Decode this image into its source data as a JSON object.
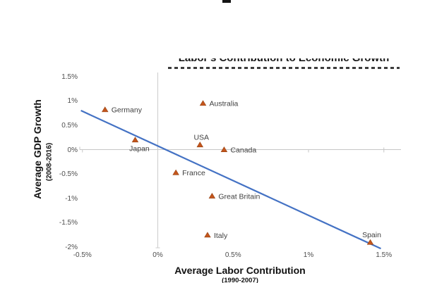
{
  "artifacts": {
    "top_cropped_text_fragment": true,
    "clipped_second_title_row": true
  },
  "chart_data": {
    "type": "scatter",
    "title": "Labor's Contribution to Economic Growth",
    "title_note": "title is vertically clipped in the screenshot (only bottom half of glyphs visible)",
    "xlabel": "Average Labor Contribution",
    "xlabel_sub": "(1990-2007)",
    "ylabel": "Average GDP Growth",
    "ylabel_sub": "(2008-2016)",
    "xlim": [
      -0.5,
      1.5
    ],
    "ylim": [
      -2.0,
      1.5
    ],
    "grid": "only zero axis lines shown, light gray",
    "legend": "none",
    "x_ticks": [
      {
        "v": -0.5,
        "label": "-0.5%"
      },
      {
        "v": 0,
        "label": "0%"
      },
      {
        "v": 0.5,
        "label": "0.5%"
      },
      {
        "v": 1,
        "label": "1%"
      },
      {
        "v": 1.5,
        "label": "1.5%"
      }
    ],
    "y_ticks": [
      {
        "v": 1.5,
        "label": "1.5%"
      },
      {
        "v": 1,
        "label": "1%"
      },
      {
        "v": 0.5,
        "label": "0.5%"
      },
      {
        "v": 0,
        "label": "0%"
      },
      {
        "v": -0.5,
        "label": "-0.5%"
      },
      {
        "v": -1,
        "label": "-1%"
      },
      {
        "v": -1.5,
        "label": "-1.5%"
      },
      {
        "v": -2,
        "label": "-2%"
      }
    ],
    "points": [
      {
        "label": "Germany",
        "x": -0.35,
        "y": 0.82,
        "label_pos": "right"
      },
      {
        "label": "Japan",
        "x": -0.15,
        "y": 0.2,
        "label_pos": "below"
      },
      {
        "label": "Australia",
        "x": 0.3,
        "y": 0.95,
        "label_pos": "right"
      },
      {
        "label": "USA",
        "x": 0.28,
        "y": 0.1,
        "label_pos": "above"
      },
      {
        "label": "Canada",
        "x": 0.44,
        "y": 0.0,
        "label_pos": "right"
      },
      {
        "label": "France",
        "x": 0.12,
        "y": -0.47,
        "label_pos": "right"
      },
      {
        "label": "Great Britain",
        "x": 0.36,
        "y": -0.95,
        "label_pos": "right"
      },
      {
        "label": "Italy",
        "x": 0.33,
        "y": -1.75,
        "label_pos": "right"
      },
      {
        "label": "Spain",
        "x": 1.41,
        "y": -1.9,
        "label_pos": "above"
      }
    ],
    "trendline": {
      "x1": -0.51,
      "y1": 0.8,
      "x2": 1.48,
      "y2": -2.03
    },
    "colors": {
      "marker_fill": "#c4551c",
      "marker_edge": "#93400f",
      "trendline": "#4472c4",
      "axis_line": "#c6c6c6",
      "tick_text": "#4d4d4d",
      "point_label_text": "#3f3f3f",
      "title_text": "#161616"
    }
  }
}
